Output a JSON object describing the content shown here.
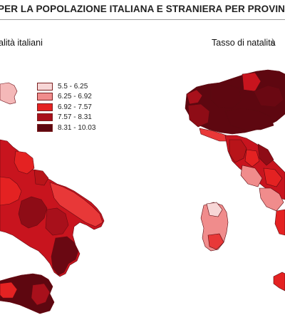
{
  "header": {
    "title": "PER LA POPOLAZIONE ITALIANA E STRANIERA PER PROVINC"
  },
  "maps": {
    "left": {
      "title": "alità italiani"
    },
    "right": {
      "title": "Tasso di natalità",
      "title_suffix": "s"
    }
  },
  "legend": {
    "items": [
      {
        "label": "5.5 - 6.25",
        "color": "#f7d6d6"
      },
      {
        "label": "6.25 - 6.92",
        "color": "#f08c8c"
      },
      {
        "label": "6.92 - 7.57",
        "color": "#e42222"
      },
      {
        "label": "7.57 - 8.31",
        "color": "#a8101b"
      },
      {
        "label": "8.31 - 10.03",
        "color": "#5e0710"
      }
    ]
  }
}
